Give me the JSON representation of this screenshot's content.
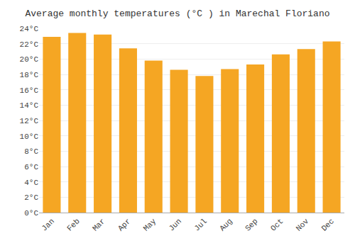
{
  "chart_data": {
    "type": "bar",
    "title": "Average monthly temperatures (°C ) in Marechal Floriano",
    "categories": [
      "Jan",
      "Feb",
      "Mar",
      "Apr",
      "May",
      "Jun",
      "Jul",
      "Aug",
      "Sep",
      "Oct",
      "Nov",
      "Dec"
    ],
    "values": [
      22.9,
      23.4,
      23.2,
      21.4,
      19.8,
      18.6,
      17.8,
      18.7,
      19.3,
      20.6,
      21.3,
      22.3
    ],
    "color": "#F5A623",
    "ylim": [
      0,
      24
    ],
    "yticks": [
      {
        "value": 0,
        "label": "0°C"
      },
      {
        "value": 2,
        "label": "2°C"
      },
      {
        "value": 4,
        "label": "4°C"
      },
      {
        "value": 6,
        "label": "6°C"
      },
      {
        "value": 8,
        "label": "8°C"
      },
      {
        "value": 10,
        "label": "10°C"
      },
      {
        "value": 12,
        "label": "12°C"
      },
      {
        "value": 14,
        "label": "14°C"
      },
      {
        "value": 16,
        "label": "16°C"
      },
      {
        "value": 18,
        "label": "18°C"
      },
      {
        "value": 20,
        "label": "20°C"
      },
      {
        "value": 22,
        "label": "22°C"
      },
      {
        "value": 24,
        "label": "24°C"
      }
    ],
    "grid": true
  }
}
